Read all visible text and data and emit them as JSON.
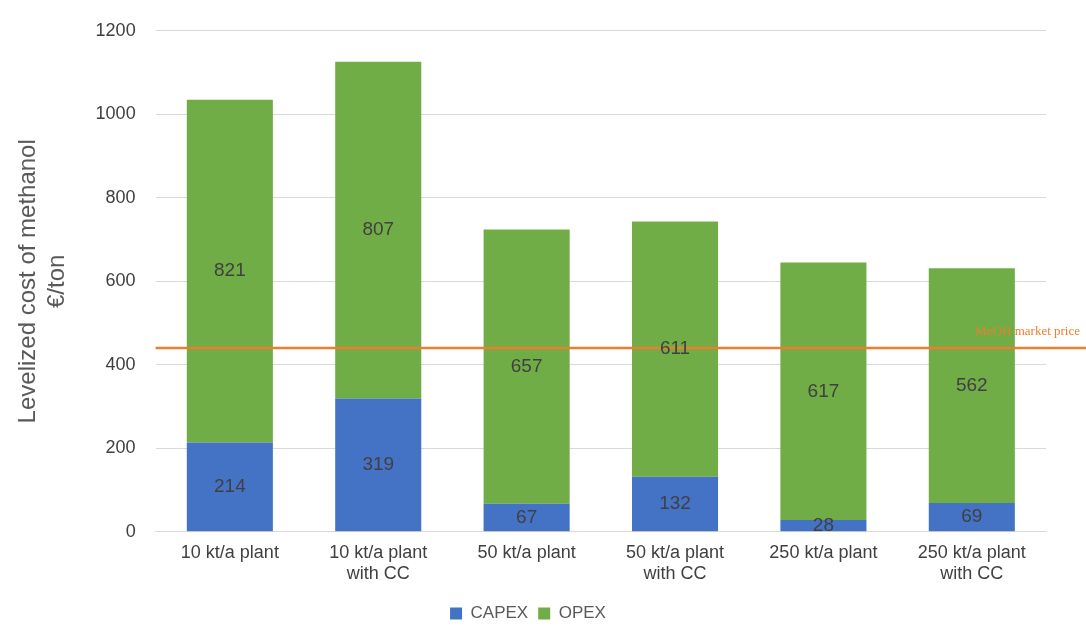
{
  "chart_data": {
    "type": "bar",
    "stacked": true,
    "ylabel": "Levelized cost of methanol €/ton",
    "categories": [
      "10 kt/a plant",
      "10 kt/a plant with CC",
      "50 kt/a plant",
      "50 kt/a plant with CC",
      "250 kt/a plant",
      "250 kt/a plant with CC"
    ],
    "series": [
      {
        "name": "CAPEX",
        "color": "#4472c4",
        "values": [
          214,
          319,
          67,
          132,
          28,
          69
        ]
      },
      {
        "name": "OPEX",
        "color": "#70ad47",
        "values": [
          821,
          807,
          657,
          611,
          617,
          562
        ]
      }
    ],
    "ylim": [
      0,
      1200
    ],
    "yticks": [
      0,
      200,
      400,
      600,
      800,
      1000,
      1200
    ],
    "grid": "y",
    "legend": "bottom",
    "data_labels": true,
    "ref_lines": [
      {
        "axis": "y",
        "value": 440,
        "label": "MeOH market price",
        "color": "#ed7d31"
      }
    ]
  }
}
